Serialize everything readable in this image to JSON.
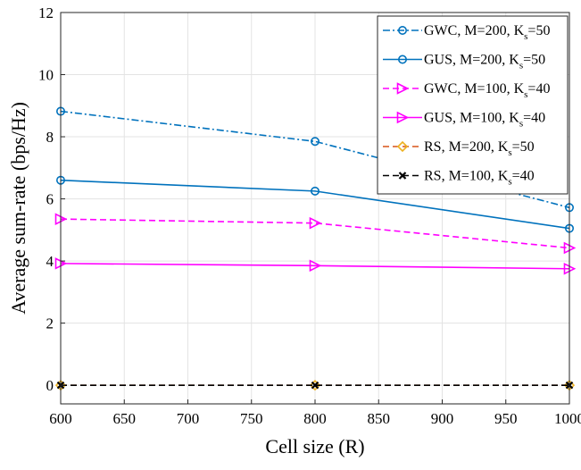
{
  "chart_data": {
    "type": "line",
    "xlabel": "Cell size (R)",
    "ylabel": "Average sum-rate (bps/Hz)",
    "xlim": [
      600,
      1000
    ],
    "ylim": [
      -0.6,
      12
    ],
    "xticks": [
      600,
      650,
      700,
      750,
      800,
      850,
      900,
      950,
      1000
    ],
    "yticks": [
      0,
      2,
      4,
      6,
      8,
      10,
      12
    ],
    "grid": true,
    "legend_position": "top-right",
    "x": [
      600,
      800,
      1000
    ],
    "series": [
      {
        "name": "GWC, M=200, K_s=50",
        "label_main": "GWC, M=200, K",
        "label_sub": "s",
        "label_tail": "=50",
        "values": [
          8.82,
          7.85,
          5.72
        ],
        "color": "#0072BD",
        "dash": "dashdot",
        "marker": "circle"
      },
      {
        "name": "GUS, M=200, K_s=50",
        "label_main": "GUS, M=200, K",
        "label_sub": "s",
        "label_tail": "=50",
        "values": [
          6.6,
          6.25,
          5.05
        ],
        "color": "#0072BD",
        "dash": "solid",
        "marker": "circle"
      },
      {
        "name": "GWC, M=100, K_s=40",
        "label_main": "GWC, M=100, K",
        "label_sub": "s",
        "label_tail": "=40",
        "values": [
          5.35,
          5.22,
          4.42
        ],
        "color": "#FF00FF",
        "dash": "dashed",
        "marker": "triangle-right"
      },
      {
        "name": "GUS, M=100, K_s=40",
        "label_main": "GUS, M=100, K",
        "label_sub": "s",
        "label_tail": "=40",
        "values": [
          3.92,
          3.85,
          3.75
        ],
        "color": "#FF00FF",
        "dash": "solid",
        "marker": "triangle-right"
      },
      {
        "name": "RS, M=200, K_s=50",
        "label_main": "RS, M=200, K",
        "label_sub": "s",
        "label_tail": "=50",
        "values": [
          0,
          0,
          0
        ],
        "color": "#D95319",
        "marker_color": "#EDB120",
        "dash": "dashed",
        "marker": "diamond"
      },
      {
        "name": "RS, M=100, K_s=40",
        "label_main": "RS, M=100, K",
        "label_sub": "s",
        "label_tail": "=40",
        "values": [
          0,
          0,
          0
        ],
        "color": "#000000",
        "dash": "dashed",
        "marker": "x"
      }
    ]
  }
}
